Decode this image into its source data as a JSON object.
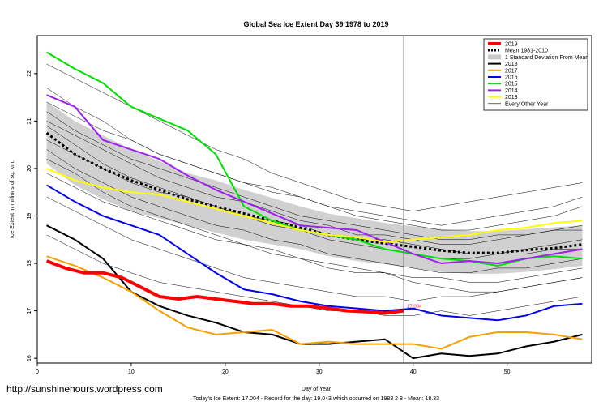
{
  "chart_data": {
    "type": "line",
    "title": "Global Sea Ice Extent Day 39 1978 to 2019",
    "xlabel": "Day of Year",
    "ylabel": "Ice Extent in millions of sq. km.",
    "xlim": [
      0,
      59
    ],
    "ylim": [
      15.9,
      22.8
    ],
    "x_ticks": [
      0,
      10,
      20,
      30,
      40,
      50
    ],
    "y_ticks": [
      16,
      17,
      18,
      19,
      20,
      21,
      22
    ],
    "current_day": 39,
    "today_label": "17.004",
    "legend_position": "top-right",
    "grid": false,
    "legend": [
      {
        "label": "2019",
        "color": "#ff0000",
        "style": "thick"
      },
      {
        "label": "Mean 1981-2010",
        "color": "#000000",
        "style": "dotted"
      },
      {
        "label": "1 Standard Deviation From Mean",
        "color": "#c8c8c8",
        "style": "band"
      },
      {
        "label": "2018",
        "color": "#000000",
        "style": "solid"
      },
      {
        "label": "2017",
        "color": "#f5a000",
        "style": "solid"
      },
      {
        "label": "2016",
        "color": "#0000ee",
        "style": "solid"
      },
      {
        "label": "2015",
        "color": "#00e000",
        "style": "solid"
      },
      {
        "label": "2014",
        "color": "#a020f0",
        "style": "solid"
      },
      {
        "label": "2013",
        "color": "#ffff00",
        "style": "solid"
      },
      {
        "label": "Every Other Year",
        "color": "#000000",
        "style": "thin"
      }
    ],
    "x": [
      1,
      4,
      7,
      10,
      13,
      16,
      19,
      22,
      25,
      28,
      31,
      34,
      37,
      40,
      43,
      46,
      49,
      52,
      55,
      58
    ],
    "mean": [
      20.75,
      20.3,
      20.0,
      19.75,
      19.55,
      19.35,
      19.2,
      19.05,
      18.9,
      18.75,
      18.6,
      18.5,
      18.42,
      18.35,
      18.27,
      18.22,
      18.22,
      18.28,
      18.32,
      18.4
    ],
    "std_upper": [
      21.4,
      21.0,
      20.7,
      20.4,
      20.15,
      19.9,
      19.75,
      19.55,
      19.38,
      19.2,
      19.05,
      18.95,
      18.85,
      18.78,
      18.72,
      18.68,
      18.68,
      18.72,
      18.76,
      18.8
    ],
    "std_lower": [
      20.1,
      19.65,
      19.35,
      19.1,
      18.95,
      18.8,
      18.65,
      18.5,
      18.4,
      18.3,
      18.15,
      18.05,
      17.98,
      17.9,
      17.82,
      17.78,
      17.78,
      17.82,
      17.88,
      17.95
    ],
    "series": [
      {
        "name": "2019",
        "color": "#ff0000",
        "width": 4,
        "x": [
          1,
          3,
          5,
          7,
          9,
          11,
          13,
          15,
          17,
          19,
          21,
          23,
          25,
          27,
          29,
          31,
          33,
          35,
          37,
          39
        ],
        "values": [
          18.05,
          17.9,
          17.8,
          17.8,
          17.7,
          17.5,
          17.3,
          17.25,
          17.3,
          17.25,
          17.2,
          17.15,
          17.15,
          17.1,
          17.1,
          17.05,
          17.0,
          16.98,
          16.95,
          17.0
        ]
      },
      {
        "name": "2018",
        "color": "#000000",
        "width": 2,
        "x": [
          1,
          4,
          7,
          10,
          13,
          16,
          19,
          22,
          25,
          28,
          31,
          34,
          37,
          40,
          43,
          46,
          49,
          52,
          55,
          58
        ],
        "values": [
          18.8,
          18.5,
          18.1,
          17.4,
          17.1,
          16.9,
          16.75,
          16.55,
          16.5,
          16.3,
          16.3,
          16.35,
          16.4,
          16.0,
          16.1,
          16.05,
          16.1,
          16.25,
          16.35,
          16.5
        ]
      },
      {
        "name": "2017",
        "color": "#f5a000",
        "width": 2,
        "x": [
          1,
          4,
          7,
          10,
          13,
          16,
          19,
          22,
          25,
          28,
          31,
          34,
          37,
          40,
          43,
          46,
          49,
          52,
          55,
          58
        ],
        "values": [
          18.15,
          17.95,
          17.7,
          17.4,
          17.0,
          16.65,
          16.5,
          16.55,
          16.6,
          16.3,
          16.35,
          16.3,
          16.3,
          16.3,
          16.2,
          16.45,
          16.55,
          16.55,
          16.5,
          16.4
        ]
      },
      {
        "name": "2016",
        "color": "#0000ee",
        "width": 2,
        "x": [
          1,
          4,
          7,
          10,
          13,
          16,
          19,
          22,
          25,
          28,
          31,
          34,
          37,
          40,
          43,
          46,
          49,
          52,
          55,
          58
        ],
        "values": [
          19.65,
          19.3,
          19.0,
          18.8,
          18.6,
          18.2,
          17.8,
          17.45,
          17.35,
          17.2,
          17.1,
          17.05,
          17.0,
          17.05,
          16.9,
          16.85,
          16.8,
          16.9,
          17.1,
          17.15
        ]
      },
      {
        "name": "2015",
        "color": "#00e000",
        "width": 2,
        "x": [
          1,
          4,
          7,
          10,
          13,
          16,
          19,
          22,
          25,
          28,
          31,
          34,
          37,
          40,
          43,
          46,
          49,
          52,
          55,
          58
        ],
        "values": [
          22.45,
          22.1,
          21.8,
          21.3,
          21.05,
          20.8,
          20.3,
          19.2,
          18.9,
          18.7,
          18.6,
          18.5,
          18.3,
          18.2,
          18.1,
          18.05,
          17.95,
          18.1,
          18.15,
          18.1
        ]
      },
      {
        "name": "2014",
        "color": "#a020f0",
        "width": 2,
        "x": [
          1,
          4,
          7,
          10,
          13,
          16,
          19,
          22,
          25,
          28,
          31,
          34,
          37,
          40,
          43,
          46,
          49,
          52,
          55,
          58
        ],
        "values": [
          21.55,
          21.3,
          20.6,
          20.4,
          20.2,
          19.85,
          19.55,
          19.3,
          19.05,
          18.8,
          18.75,
          18.7,
          18.45,
          18.2,
          18.0,
          18.05,
          18.0,
          18.1,
          18.2,
          18.3
        ]
      },
      {
        "name": "2013",
        "color": "#ffff00",
        "width": 2,
        "x": [
          1,
          4,
          7,
          10,
          13,
          16,
          19,
          22,
          25,
          28,
          31,
          34,
          37,
          40,
          43,
          46,
          49,
          52,
          55,
          58
        ],
        "values": [
          20.0,
          19.75,
          19.6,
          19.5,
          19.45,
          19.3,
          19.15,
          19.0,
          18.85,
          18.7,
          18.6,
          18.55,
          18.45,
          18.5,
          18.55,
          18.6,
          18.7,
          18.75,
          18.85,
          18.9
        ]
      }
    ],
    "other_years": [
      [
        21.7,
        21.3,
        21.0,
        20.6,
        20.3,
        20.1,
        19.9,
        19.7,
        19.5,
        19.4,
        19.2,
        19.1,
        19.0,
        18.9,
        18.8,
        18.9,
        19.0,
        19.1,
        19.2,
        19.4
      ],
      [
        21.2,
        20.8,
        20.5,
        20.2,
        20.0,
        19.8,
        19.6,
        19.4,
        19.2,
        19.0,
        18.9,
        18.8,
        18.7,
        18.6,
        18.5,
        18.5,
        18.6,
        18.6,
        18.7,
        18.7
      ],
      [
        20.9,
        20.5,
        20.1,
        19.8,
        19.6,
        19.4,
        19.2,
        19.0,
        18.8,
        18.7,
        18.5,
        18.4,
        18.3,
        18.2,
        18.1,
        18.1,
        18.2,
        18.2,
        18.3,
        18.3
      ],
      [
        20.4,
        20.0,
        19.7,
        19.4,
        19.2,
        19.0,
        18.8,
        18.7,
        18.5,
        18.4,
        18.2,
        18.1,
        18.0,
        17.9,
        17.8,
        17.8,
        17.9,
        17.9,
        18.0,
        18.1
      ],
      [
        22.2,
        21.9,
        21.6,
        21.3,
        21.0,
        20.7,
        20.4,
        20.2,
        19.9,
        19.7,
        19.5,
        19.3,
        19.2,
        19.1,
        19.2,
        19.3,
        19.4,
        19.5,
        19.6,
        19.7
      ],
      [
        20.6,
        20.3,
        20.0,
        19.7,
        19.5,
        19.4,
        19.2,
        19.0,
        18.9,
        18.8,
        18.6,
        18.5,
        18.5,
        18.4,
        18.3,
        18.2,
        18.2,
        18.3,
        18.4,
        18.5
      ],
      [
        19.9,
        19.6,
        19.3,
        19.1,
        18.9,
        18.7,
        18.5,
        18.4,
        18.2,
        18.1,
        17.9,
        17.8,
        17.8,
        17.7,
        17.7,
        17.6,
        17.6,
        17.7,
        17.8,
        17.9
      ],
      [
        21.4,
        21.1,
        20.8,
        20.6,
        20.3,
        20.1,
        19.9,
        19.7,
        19.6,
        19.4,
        19.2,
        19.0,
        18.9,
        18.8,
        18.7,
        18.7,
        18.8,
        18.9,
        19.0,
        19.2
      ],
      [
        20.2,
        19.9,
        19.5,
        19.2,
        19.0,
        18.8,
        18.6,
        18.4,
        18.3,
        18.1,
        18.0,
        17.9,
        17.8,
        17.6,
        17.5,
        17.4,
        17.4,
        17.5,
        17.6,
        17.7
      ],
      [
        21.0,
        20.7,
        20.4,
        20.1,
        19.8,
        19.6,
        19.4,
        19.3,
        19.1,
        18.9,
        18.8,
        18.6,
        18.6,
        18.5,
        18.4,
        18.4,
        18.5,
        18.6,
        18.7,
        18.8
      ],
      [
        19.4,
        19.1,
        18.8,
        18.5,
        18.3,
        18.1,
        17.9,
        17.7,
        17.6,
        17.5,
        17.4,
        17.3,
        17.3,
        17.2,
        17.3,
        17.3,
        17.4,
        17.5,
        17.6,
        17.7
      ],
      [
        18.6,
        18.3,
        18.0,
        17.8,
        17.6,
        17.5,
        17.4,
        17.3,
        17.2,
        17.1,
        17.0,
        17.0,
        16.9,
        16.9,
        17.0,
        16.9,
        17.0,
        17.1,
        17.2,
        17.3
      ]
    ]
  },
  "footer": {
    "url": "http://sunshinehours.wordpress.com",
    "summary": "Today's Ice Extent: 17.004  - Record for the day: 19.043 which occurred on 1988 2 8  - Mean: 18.33"
  }
}
